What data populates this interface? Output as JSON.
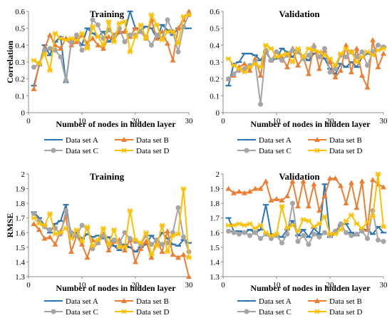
{
  "chart_data": [
    {
      "type": "line",
      "title": "Training",
      "xlabel": "Number of nodes in hidden layer",
      "ylabel": "Correlation",
      "xlim": [
        0,
        30
      ],
      "ylim": [
        0,
        0.6
      ],
      "xticks": [
        0,
        10,
        20,
        30
      ],
      "yticks": [
        0,
        0.1,
        0.2,
        0.3,
        0.4,
        0.5,
        0.6
      ],
      "ytick_labels": [
        "0",
        "0.1",
        "0.2",
        "0.3",
        "0.4",
        "0.5",
        "0.6"
      ],
      "grid": false,
      "legend_position": "bottom",
      "x": [
        1,
        2,
        3,
        4,
        5,
        6,
        7,
        8,
        9,
        10,
        11,
        12,
        13,
        14,
        15,
        16,
        17,
        18,
        19,
        20,
        21,
        22,
        23,
        24,
        25,
        26,
        27,
        28,
        29,
        30
      ],
      "series": [
        {
          "name": "Data set A",
          "values": [
            0.16,
            0.28,
            0.4,
            0.34,
            0.42,
            0.45,
            0.18,
            0.42,
            0.44,
            0.4,
            0.5,
            0.47,
            0.45,
            0.48,
            0.42,
            0.45,
            0.47,
            0.48,
            0.6,
            0.5,
            0.49,
            0.51,
            0.5,
            0.44,
            0.52,
            0.49,
            0.46,
            0.5,
            0.5,
            0.5
          ]
        },
        {
          "name": "Data set B",
          "values": [
            0.14,
            0.29,
            0.38,
            0.46,
            0.4,
            0.38,
            0.44,
            0.4,
            0.42,
            0.46,
            0.41,
            0.44,
            0.4,
            0.38,
            0.45,
            0.43,
            0.48,
            0.48,
            0.45,
            0.5,
            0.48,
            0.44,
            0.55,
            0.44,
            0.48,
            0.41,
            0.31,
            0.5,
            0.55,
            0.6
          ]
        },
        {
          "name": "Data set C",
          "values": [
            0.27,
            0.29,
            0.37,
            0.38,
            0.37,
            0.33,
            0.19,
            0.42,
            0.46,
            0.37,
            0.39,
            0.55,
            0.52,
            0.44,
            0.49,
            0.46,
            0.5,
            0.42,
            0.46,
            0.46,
            0.48,
            0.45,
            0.4,
            0.46,
            0.44,
            0.55,
            0.48,
            0.36,
            0.51,
            0.58
          ]
        },
        {
          "name": "Data set D",
          "values": [
            0.31,
            0.29,
            0.35,
            0.25,
            0.47,
            0.44,
            0.43,
            0.44,
            0.43,
            0.47,
            0.38,
            0.51,
            0.45,
            0.4,
            0.54,
            0.42,
            0.53,
            0.54,
            0.36,
            0.45,
            0.52,
            0.44,
            0.58,
            0.52,
            0.43,
            0.48,
            0.48,
            0.41,
            0.57,
            0.58
          ]
        }
      ]
    },
    {
      "type": "line",
      "title": "Validation",
      "xlabel": "Number of nodes in hidden layer",
      "ylabel": "",
      "xlim": [
        0,
        30
      ],
      "ylim": [
        0,
        0.6
      ],
      "xticks": [
        0,
        10,
        20,
        30
      ],
      "yticks": [
        0,
        0.1,
        0.2,
        0.3,
        0.4,
        0.5,
        0.6
      ],
      "ytick_labels": [
        "0",
        "0.1",
        "0.2",
        "0.3",
        "0.4",
        "0.5",
        "0.6"
      ],
      "grid": false,
      "legend_position": "bottom",
      "x": [
        1,
        2,
        3,
        4,
        5,
        6,
        7,
        8,
        9,
        10,
        11,
        12,
        13,
        14,
        15,
        16,
        17,
        18,
        19,
        20,
        21,
        22,
        23,
        24,
        25,
        26,
        27,
        28,
        29,
        30
      ],
      "series": [
        {
          "name": "Data set A",
          "values": [
            0.16,
            0.29,
            0.3,
            0.35,
            0.35,
            0.34,
            0.31,
            0.36,
            0.31,
            0.32,
            0.38,
            0.36,
            0.33,
            0.37,
            0.33,
            0.31,
            0.35,
            0.36,
            0.32,
            0.26,
            0.23,
            0.29,
            0.27,
            0.3,
            0.27,
            0.33,
            0.35,
            0.34,
            0.37,
            0.39
          ]
        },
        {
          "name": "Data set B",
          "values": [
            0.2,
            0.22,
            0.27,
            0.29,
            0.25,
            0.32,
            0.22,
            0.37,
            0.31,
            0.36,
            0.33,
            0.27,
            0.38,
            0.28,
            0.33,
            0.23,
            0.4,
            0.26,
            0.37,
            0.3,
            0.21,
            0.25,
            0.4,
            0.24,
            0.38,
            0.22,
            0.15,
            0.43,
            0.27,
            0.35
          ]
        },
        {
          "name": "Data set C",
          "values": [
            0.2,
            0.23,
            0.25,
            0.26,
            0.28,
            0.3,
            0.05,
            0.37,
            0.31,
            0.36,
            0.31,
            0.34,
            0.37,
            0.36,
            0.32,
            0.34,
            0.39,
            0.33,
            0.38,
            0.24,
            0.26,
            0.34,
            0.33,
            0.36,
            0.33,
            0.36,
            0.28,
            0.36,
            0.4,
            0.39
          ]
        },
        {
          "name": "Data set D",
          "values": [
            0.32,
            0.28,
            0.26,
            0.24,
            0.27,
            0.29,
            0.27,
            0.4,
            0.38,
            0.33,
            0.34,
            0.35,
            0.3,
            0.38,
            0.33,
            0.38,
            0.37,
            0.36,
            0.34,
            0.32,
            0.28,
            0.35,
            0.38,
            0.36,
            0.3,
            0.33,
            0.36,
            0.34,
            0.37,
            0.38
          ]
        }
      ]
    },
    {
      "type": "line",
      "title": "Training",
      "xlabel": "Number of nodes in hidden layer",
      "ylabel": "RMSE",
      "xlim": [
        0,
        30
      ],
      "ylim": [
        1.3,
        2
      ],
      "xticks": [
        0,
        10,
        20,
        30
      ],
      "yticks": [
        1.3,
        1.4,
        1.5,
        1.6,
        1.7,
        1.8,
        1.9,
        2
      ],
      "ytick_labels": [
        "1.3",
        "1.4",
        "1.5",
        "1.6",
        "1.7",
        "1.8",
        "1.9",
        "2"
      ],
      "grid": false,
      "legend_position": "bottom",
      "x": [
        1,
        2,
        3,
        4,
        5,
        6,
        7,
        8,
        9,
        10,
        11,
        12,
        13,
        14,
        15,
        16,
        17,
        18,
        19,
        20,
        21,
        22,
        23,
        24,
        25,
        26,
        27,
        28,
        29,
        30
      ],
      "series": [
        {
          "name": "Data set A",
          "values": [
            1.74,
            1.7,
            1.65,
            1.6,
            1.66,
            1.68,
            1.79,
            1.57,
            1.6,
            1.56,
            1.59,
            1.57,
            1.58,
            1.56,
            1.57,
            1.51,
            1.48,
            1.52,
            1.5,
            1.47,
            1.5,
            1.52,
            1.58,
            1.54,
            1.6,
            1.56,
            1.52,
            1.51,
            1.55,
            1.53
          ]
        },
        {
          "name": "Data set B",
          "values": [
            1.66,
            1.62,
            1.56,
            1.57,
            1.52,
            1.61,
            1.71,
            1.47,
            1.58,
            1.52,
            1.43,
            1.55,
            1.53,
            1.59,
            1.48,
            1.54,
            1.55,
            1.48,
            1.55,
            1.4,
            1.49,
            1.54,
            1.43,
            1.55,
            1.47,
            1.61,
            1.45,
            1.43,
            1.45,
            1.3
          ]
        },
        {
          "name": "Data set C",
          "values": [
            1.73,
            1.68,
            1.64,
            1.62,
            1.63,
            1.59,
            1.75,
            1.6,
            1.58,
            1.65,
            1.63,
            1.49,
            1.53,
            1.58,
            1.52,
            1.55,
            1.53,
            1.6,
            1.56,
            1.54,
            1.52,
            1.58,
            1.52,
            1.55,
            1.52,
            1.53,
            1.6,
            1.77,
            1.57,
            1.47
          ]
        },
        {
          "name": "Data set D",
          "values": [
            1.7,
            1.66,
            1.65,
            1.73,
            1.59,
            1.6,
            1.63,
            1.56,
            1.62,
            1.54,
            1.64,
            1.51,
            1.55,
            1.63,
            1.52,
            1.62,
            1.5,
            1.5,
            1.75,
            1.55,
            1.53,
            1.6,
            1.45,
            1.51,
            1.65,
            1.47,
            1.58,
            1.59,
            1.9,
            1.43
          ]
        }
      ]
    },
    {
      "type": "line",
      "title": "Validation",
      "xlabel": "Number of nodes in hidden layer",
      "ylabel": "",
      "xlim": [
        0,
        30
      ],
      "ylim": [
        1.3,
        2
      ],
      "xticks": [
        0,
        10,
        20,
        30
      ],
      "yticks": [
        1.3,
        1.4,
        1.5,
        1.6,
        1.7,
        1.8,
        1.9,
        2
      ],
      "ytick_labels": [
        "1.3",
        "1.4",
        "1.5",
        "1.6",
        "1.7",
        "1.8",
        "1.9",
        "2"
      ],
      "grid": false,
      "legend_position": "bottom",
      "x": [
        1,
        2,
        3,
        4,
        5,
        6,
        7,
        8,
        9,
        10,
        11,
        12,
        13,
        14,
        15,
        16,
        17,
        18,
        19,
        20,
        21,
        22,
        23,
        24,
        25,
        26,
        27,
        28,
        29,
        30
      ],
      "series": [
        {
          "name": "Data set A",
          "values": [
            1.7,
            1.61,
            1.61,
            1.6,
            1.62,
            1.6,
            1.62,
            1.79,
            1.59,
            1.58,
            1.57,
            1.62,
            1.68,
            1.58,
            1.62,
            1.57,
            1.63,
            1.59,
            1.93,
            1.57,
            1.6,
            1.65,
            1.66,
            1.6,
            1.58,
            1.62,
            1.62,
            1.59,
            1.64,
            1.6
          ]
        },
        {
          "name": "Data set B",
          "values": [
            1.9,
            1.87,
            1.88,
            1.87,
            1.88,
            1.9,
            1.9,
            1.95,
            1.82,
            1.83,
            1.82,
            1.85,
            1.95,
            1.78,
            1.95,
            1.78,
            1.93,
            1.75,
            1.85,
            1.97,
            1.97,
            1.92,
            1.8,
            1.94,
            1.77,
            1.95,
            1.62,
            1.96,
            1.93,
            1.91
          ]
        },
        {
          "name": "Data set C",
          "values": [
            1.61,
            1.6,
            1.59,
            1.6,
            1.58,
            1.6,
            1.56,
            1.59,
            1.56,
            1.58,
            1.53,
            1.59,
            1.8,
            1.54,
            1.58,
            1.52,
            1.59,
            1.57,
            1.6,
            1.58,
            1.61,
            1.66,
            1.6,
            1.58,
            1.59,
            1.61,
            1.56,
            1.75,
            1.55,
            1.54
          ]
        },
        {
          "name": "Data set D",
          "values": [
            1.65,
            1.65,
            1.66,
            1.65,
            1.66,
            1.63,
            1.65,
            1.6,
            1.58,
            1.59,
            1.78,
            1.63,
            1.65,
            1.61,
            1.69,
            1.68,
            1.64,
            1.66,
            1.71,
            1.59,
            1.59,
            1.62,
            1.68,
            1.72,
            1.66,
            1.63,
            1.67,
            1.71,
            2.0,
            1.64
          ]
        }
      ]
    }
  ],
  "style": {
    "colors": [
      "#2E75B6",
      "#ED7D31",
      "#A5A5A5",
      "#FFC000"
    ],
    "markers": [
      "dash",
      "triangle",
      "circle",
      "star"
    ]
  }
}
